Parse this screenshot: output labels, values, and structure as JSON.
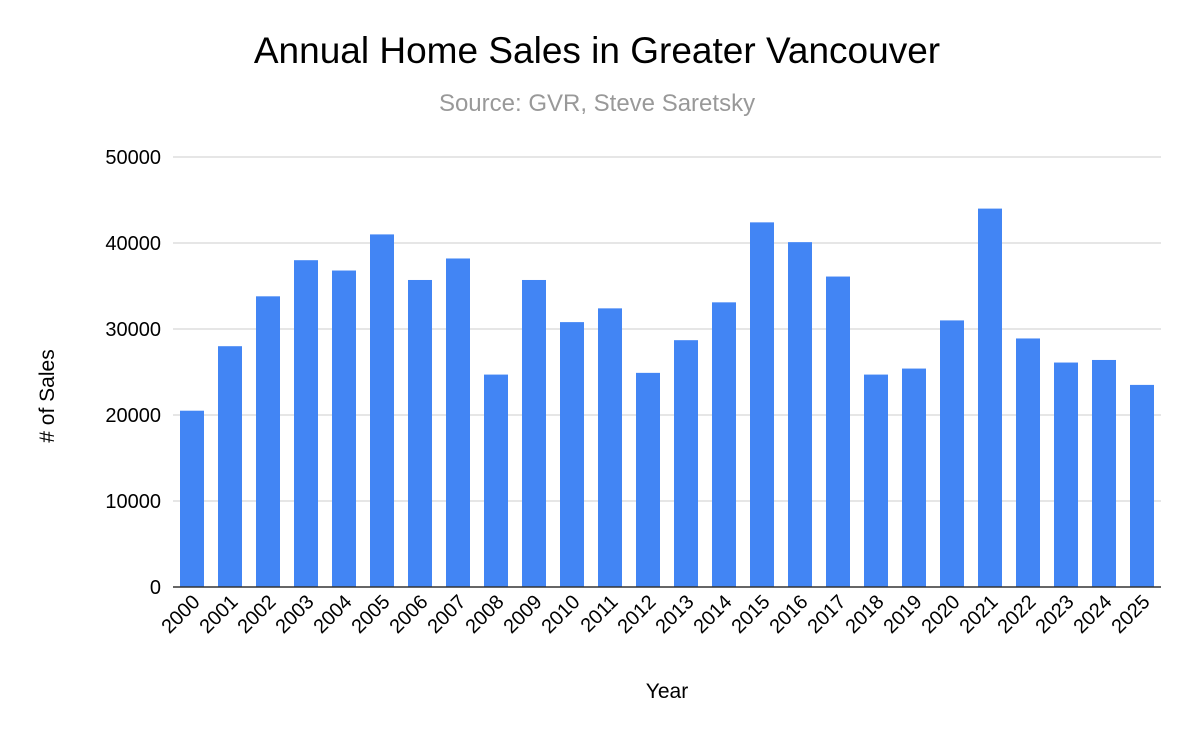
{
  "chart_data": {
    "type": "bar",
    "title": "Annual Home Sales in Greater Vancouver",
    "subtitle": "Source: GVR, Steve Saretsky",
    "xlabel": "Year",
    "ylabel": "# of Sales",
    "categories": [
      "2000",
      "2001",
      "2002",
      "2003",
      "2004",
      "2005",
      "2006",
      "2007",
      "2008",
      "2009",
      "2010",
      "2011",
      "2012",
      "2013",
      "2014",
      "2015",
      "2016",
      "2017",
      "2018",
      "2019",
      "2020",
      "2021",
      "2022",
      "2023",
      "2024",
      "2025"
    ],
    "series": [
      {
        "values": [
          20500,
          28000,
          33800,
          38000,
          36800,
          41000,
          35700,
          38200,
          24700,
          35700,
          30800,
          32400,
          24900,
          28700,
          33100,
          42400,
          40100,
          36100,
          24700,
          25400,
          31000,
          44000,
          28900,
          26100,
          26400,
          23500
        ]
      }
    ],
    "ylim": [
      0,
      50000
    ],
    "yticks": [
      "0",
      "10000",
      "20000",
      "30000",
      "40000",
      "50000"
    ],
    "grid": true,
    "legend": "none",
    "colors": {
      "bar": "#4285f4",
      "grid": "#cccccc",
      "axis": "#333333",
      "subtitle": "#999999"
    }
  }
}
